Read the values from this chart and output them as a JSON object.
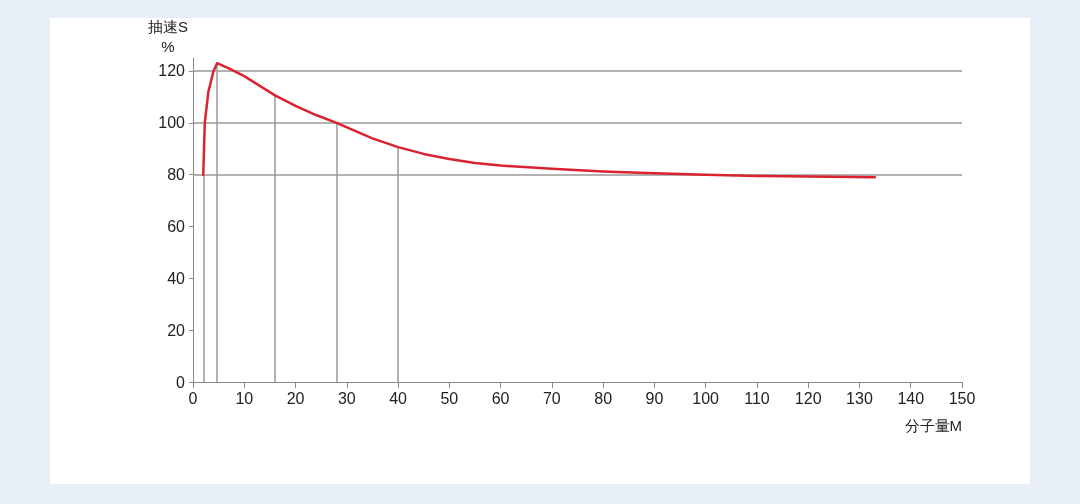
{
  "chart_data": {
    "type": "line",
    "xlabel": "分子量M",
    "ylabel": "抽速S\n%",
    "x": [
      2,
      2.3,
      3,
      4,
      4.7,
      7,
      10,
      16,
      20,
      24,
      28,
      35,
      40,
      45,
      50,
      55,
      60,
      70,
      80,
      90,
      100,
      110,
      120,
      133
    ],
    "series": [
      {
        "color": "#d9232e",
        "values": [
          80,
          100,
          112,
          120,
          123,
          121,
          118,
          110.6,
          106.5,
          103,
          100,
          94,
          90.6,
          88,
          86,
          84.5,
          83.5,
          82.3,
          81.2,
          80.5,
          80,
          79.5,
          79.3,
          79
        ]
      }
    ],
    "xlim": [
      0,
      150
    ],
    "xticks": [
      0,
      10,
      20,
      30,
      40,
      50,
      60,
      70,
      80,
      90,
      100,
      110,
      120,
      130,
      140,
      150
    ],
    "ylim": [
      0,
      125
    ],
    "yticks": [
      0,
      20,
      40,
      60,
      80,
      100,
      120
    ],
    "ref_lines": [
      {
        "axis": "x",
        "value": 2,
        "color": "#999999"
      },
      {
        "axis": "x",
        "value": 4.7,
        "color": "#999999"
      },
      {
        "axis": "x",
        "value": 16,
        "color": "#999999"
      },
      {
        "axis": "x",
        "value": 28,
        "color": "#999999"
      },
      {
        "axis": "x",
        "value": 40,
        "color": "#999999"
      },
      {
        "axis": "y",
        "value": 80,
        "color": "#999999"
      },
      {
        "axis": "y",
        "value": 100,
        "color": "#999999"
      },
      {
        "axis": "y",
        "value": 120,
        "color": "#999999"
      }
    ],
    "grid": false,
    "marker": "none",
    "line_style": "solid"
  }
}
